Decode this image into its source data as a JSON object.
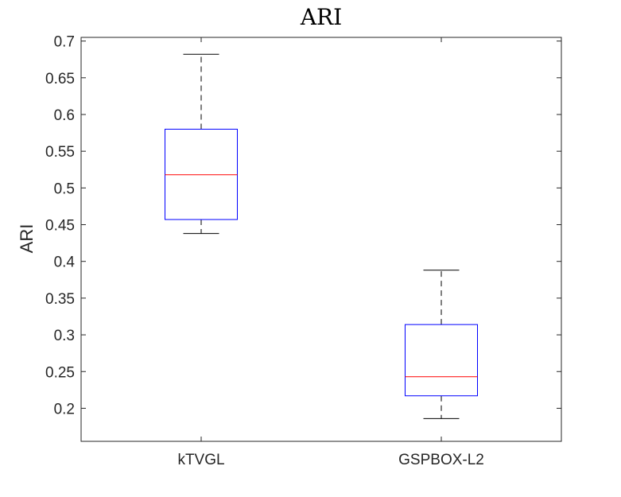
{
  "chart_data": {
    "type": "box",
    "title": "ARI",
    "xlabel": "",
    "ylabel": "ARI",
    "ylim": [
      0.155,
      0.705
    ],
    "yticks": [
      0.2,
      0.25,
      0.3,
      0.35,
      0.4,
      0.45,
      0.5,
      0.55,
      0.6,
      0.65,
      0.7
    ],
    "ytick_labels": [
      "0.2",
      "0.25",
      "0.3",
      "0.35",
      "0.4",
      "0.45",
      "0.5",
      "0.55",
      "0.6",
      "0.65",
      "0.7"
    ],
    "categories": [
      "kTVGL",
      "GSPBOX-L2"
    ],
    "boxes": [
      {
        "category": "kTVGL",
        "whisker_low": 0.438,
        "q1": 0.457,
        "median": 0.518,
        "q3": 0.58,
        "whisker_high": 0.682
      },
      {
        "category": "GSPBOX-L2",
        "whisker_low": 0.186,
        "q1": 0.217,
        "median": 0.243,
        "q3": 0.314,
        "whisker_high": 0.388
      }
    ],
    "grid": false,
    "colors": {
      "box": "#0000ff",
      "median": "#ff0000",
      "whisker": "#000000",
      "axes": "#262626"
    }
  }
}
